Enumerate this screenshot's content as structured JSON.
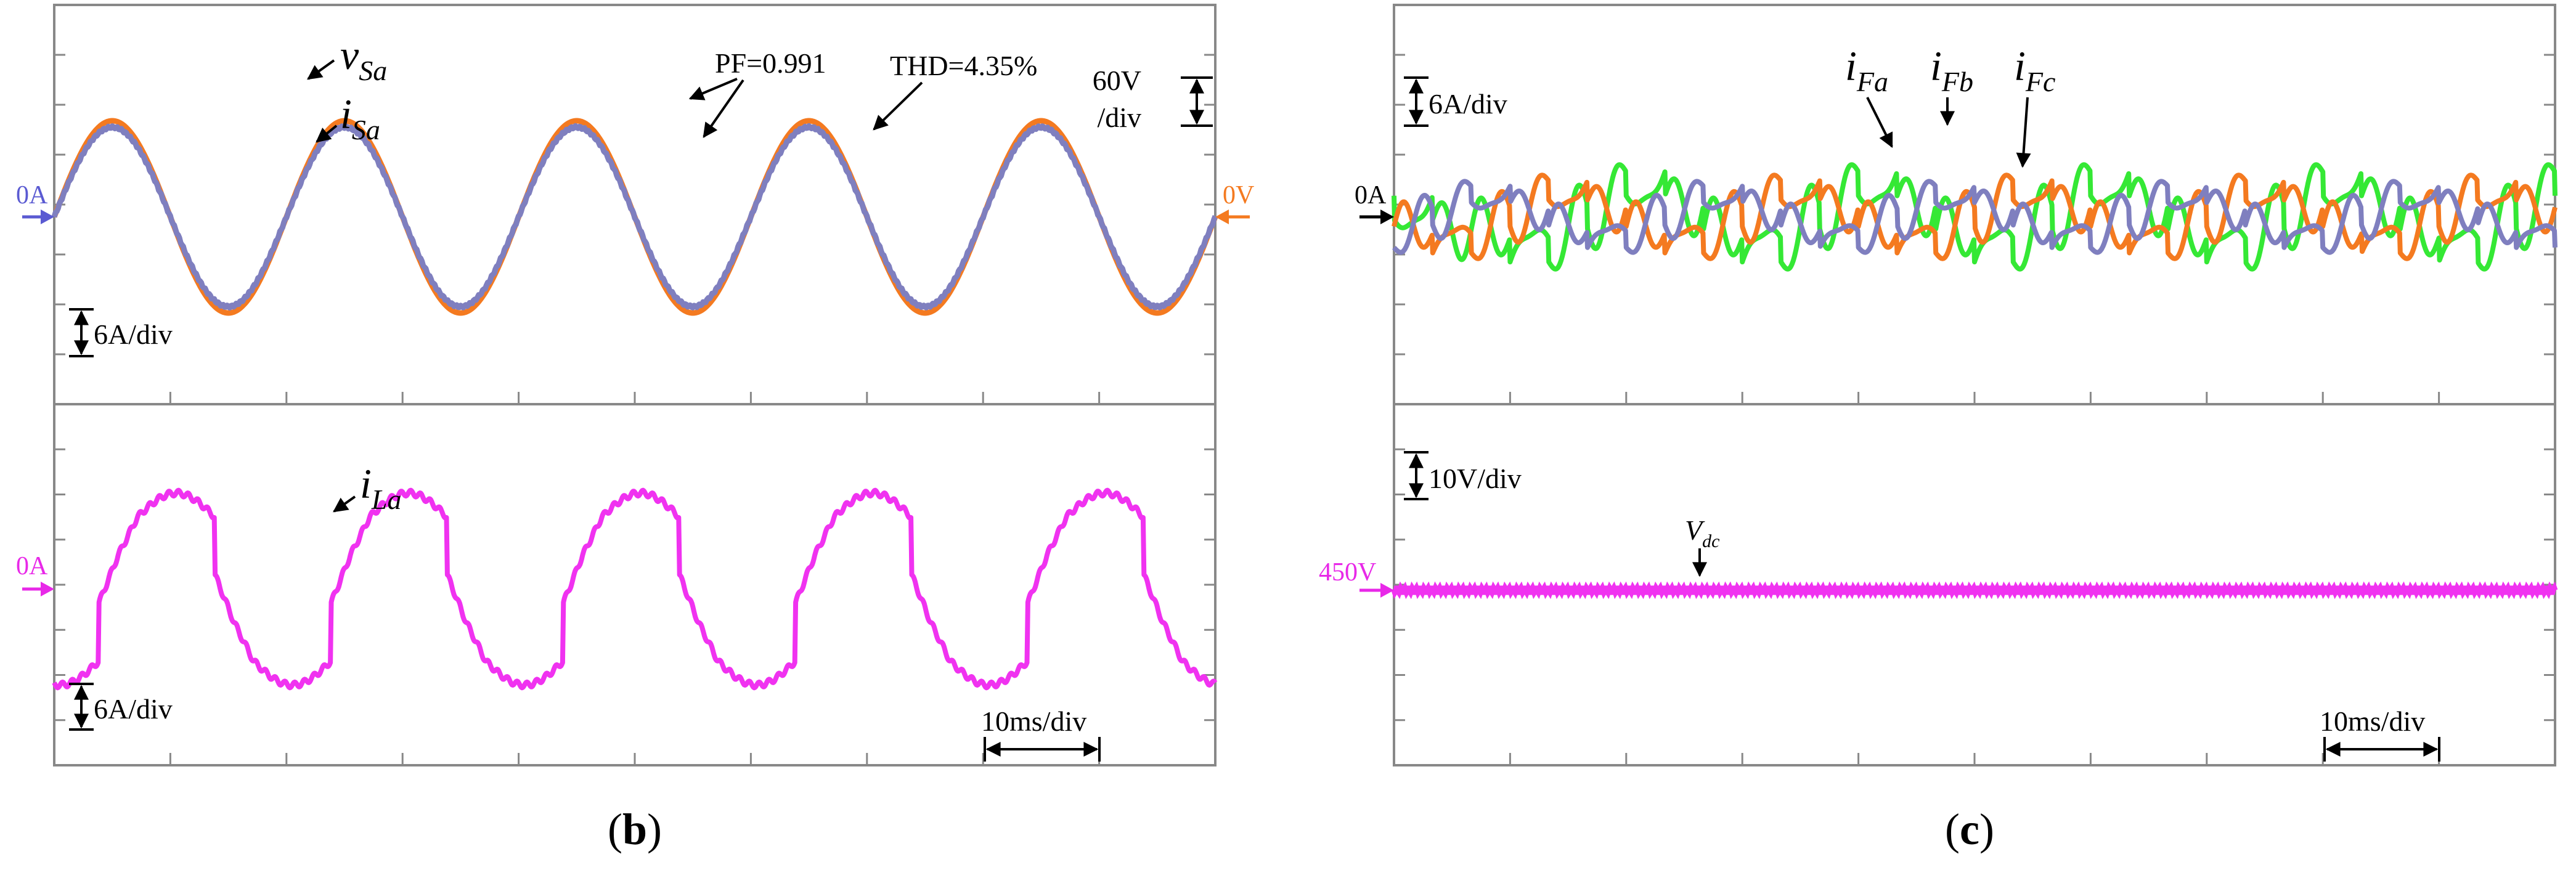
{
  "figure": {
    "caption_b": "(b)",
    "caption_c": "(c)",
    "caption_b_prefix": "(",
    "caption_b_letter": "b",
    "caption_b_suffix": ")",
    "caption_c_prefix": "(",
    "caption_c_letter": "c",
    "caption_c_suffix": ")"
  },
  "colors": {
    "orange": "#f47a20",
    "blue": "#7f7fbf",
    "magenta": "#f032f0",
    "green": "#35e835",
    "grid": "#c8c8c8",
    "frame": "#888888",
    "arrow_blue": "#5a5ad2",
    "arrow_orange": "#f47a20",
    "arrow_magenta": "#e828e8",
    "ink": "#000000"
  },
  "chart_data": [
    {
      "id": "b-top",
      "panel": "b",
      "type": "line",
      "x_unit": "ms",
      "time_per_div": "10ms/div",
      "xlim": [
        0,
        100
      ],
      "series": [
        {
          "name": "vSa",
          "label_main": "v",
          "label_sub": "Sa",
          "color": "#f47a20",
          "amplitude": 120,
          "unit": "V",
          "frequency_hz": 50,
          "phase_deg": 0,
          "shape": "sine"
        },
        {
          "name": "iSa",
          "label_main": "i",
          "label_sub": "Sa",
          "color": "#7f7fbf",
          "amplitude": 12.5,
          "unit": "A",
          "frequency_hz": 50,
          "phase_deg": 0,
          "shape": "sine"
        }
      ],
      "annotations": {
        "pf": "PF=0.991",
        "thd": "THD=4.35%",
        "v_scale_line1": "60V",
        "v_scale_line2": "/div",
        "i_scale": "6A/div",
        "left_zero": "0A",
        "right_zero": "0V"
      }
    },
    {
      "id": "b-bottom",
      "panel": "b",
      "type": "line",
      "x_unit": "ms",
      "time_per_div": "10ms/div",
      "xlim": [
        0,
        100
      ],
      "series": [
        {
          "name": "iLa",
          "label_main": "i",
          "label_sub": "La",
          "color": "#f032f0",
          "amplitude": 12.3,
          "unit": "A",
          "frequency_hz": 50,
          "shape": "rectifier-load-current"
        }
      ],
      "annotations": {
        "i_scale": "6A/div",
        "left_zero": "0A",
        "time_scale": "10ms/div"
      }
    },
    {
      "id": "c-top",
      "panel": "c",
      "type": "line",
      "x_unit": "ms",
      "time_per_div": "10ms/div",
      "xlim": [
        0,
        100
      ],
      "series": [
        {
          "name": "iFa",
          "label_main": "i",
          "label_sub": "Fa",
          "color": "#f47a20",
          "unit": "A",
          "frequency_hz": 50,
          "phase_deg": 0,
          "shape": "filter-current"
        },
        {
          "name": "iFb",
          "label_main": "i",
          "label_sub": "Fb",
          "color": "#35e835",
          "unit": "A",
          "frequency_hz": 50,
          "phase_deg": -120,
          "shape": "filter-current"
        },
        {
          "name": "iFc",
          "label_main": "i",
          "label_sub": "Fc",
          "color": "#7f7fbf",
          "unit": "A",
          "frequency_hz": 50,
          "phase_deg": 120,
          "shape": "filter-current"
        }
      ],
      "annotations": {
        "i_scale": "6A/div",
        "left_zero": "0A"
      }
    },
    {
      "id": "c-bottom",
      "panel": "c",
      "type": "line",
      "x_unit": "ms",
      "time_per_div": "10ms/div",
      "xlim": [
        0,
        100
      ],
      "series": [
        {
          "name": "Vdc",
          "label_main": "V",
          "label_sub": "dc",
          "color": "#f032f0",
          "value": 450,
          "unit": "V",
          "shape": "dc-with-ripple"
        }
      ],
      "annotations": {
        "v_scale": "10V/div",
        "left_level": "450V",
        "time_scale": "10ms/div"
      }
    }
  ]
}
